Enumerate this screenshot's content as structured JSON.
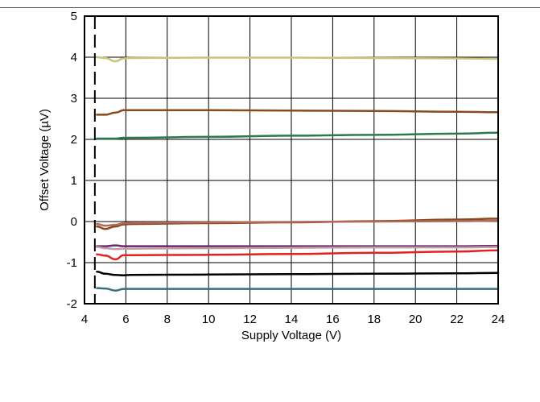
{
  "chart_data": {
    "type": "line",
    "title": "",
    "xlabel": "Supply Voltage (V)",
    "ylabel": "Offset Voltage (µV)",
    "xlim": [
      4,
      24
    ],
    "ylim": [
      -2,
      5
    ],
    "xticks": [
      4,
      6,
      8,
      10,
      12,
      14,
      16,
      18,
      20,
      22,
      24
    ],
    "yticks": [
      -2,
      -1,
      0,
      1,
      2,
      3,
      4,
      5
    ],
    "grid": true,
    "legend": "none",
    "dashed_marker_x": 4.5,
    "series": [
      {
        "color": "#c8c47a",
        "x": [
          4.6,
          5.0,
          5.5,
          5.9,
          6.2,
          10,
          14,
          18,
          22,
          24
        ],
        "y": [
          4.0,
          3.98,
          3.9,
          3.97,
          3.98,
          3.99,
          3.99,
          3.98,
          3.97,
          3.96
        ]
      },
      {
        "color": "#8b4a1c",
        "x": [
          4.6,
          5.0,
          5.5,
          5.9,
          6.2,
          10,
          14,
          18,
          22,
          24
        ],
        "y": [
          2.6,
          2.6,
          2.65,
          2.71,
          2.71,
          2.71,
          2.7,
          2.69,
          2.67,
          2.66
        ]
      },
      {
        "color": "#2a7a4e",
        "x": [
          4.6,
          5.0,
          5.5,
          5.9,
          6.2,
          10,
          14,
          18,
          22,
          24
        ],
        "y": [
          2.02,
          2.02,
          2.02,
          2.04,
          2.04,
          2.06,
          2.09,
          2.11,
          2.14,
          2.16
        ]
      },
      {
        "color": "#8b4a1c",
        "x": [
          4.6,
          5.0,
          5.5,
          5.9,
          6.2,
          10,
          14,
          18,
          22,
          24
        ],
        "y": [
          -0.12,
          -0.18,
          -0.12,
          -0.07,
          -0.06,
          -0.04,
          -0.02,
          0.01,
          0.05,
          0.07
        ]
      },
      {
        "color": "#b06a5a",
        "x": [
          4.6,
          5.0,
          5.5,
          5.9,
          6.2,
          10,
          14,
          18,
          22,
          24
        ],
        "y": [
          -0.06,
          -0.1,
          -0.08,
          -0.04,
          -0.03,
          -0.02,
          -0.01,
          0.0,
          0.01,
          0.02
        ]
      },
      {
        "color": "#6a2a6a",
        "x": [
          4.6,
          5.0,
          5.5,
          5.9,
          6.2,
          10,
          14,
          18,
          22,
          24
        ],
        "y": [
          -0.6,
          -0.6,
          -0.58,
          -0.6,
          -0.6,
          -0.6,
          -0.6,
          -0.6,
          -0.6,
          -0.59
        ]
      },
      {
        "color": "#c0a0a8",
        "x": [
          4.6,
          5.0,
          5.5,
          5.9,
          6.2,
          10,
          14,
          18,
          22,
          24
        ],
        "y": [
          -0.62,
          -0.65,
          -0.67,
          -0.66,
          -0.66,
          -0.65,
          -0.64,
          -0.63,
          -0.63,
          -0.62
        ]
      },
      {
        "color": "#e52020",
        "x": [
          4.6,
          5.0,
          5.5,
          5.9,
          6.2,
          10,
          14,
          18,
          22,
          24
        ],
        "y": [
          -0.8,
          -0.83,
          -0.92,
          -0.82,
          -0.82,
          -0.81,
          -0.79,
          -0.76,
          -0.73,
          -0.7
        ]
      },
      {
        "color": "#000000",
        "x": [
          4.6,
          5.0,
          5.5,
          5.9,
          6.2,
          10,
          14,
          18,
          22,
          24
        ],
        "y": [
          -1.22,
          -1.27,
          -1.3,
          -1.31,
          -1.3,
          -1.29,
          -1.28,
          -1.27,
          -1.26,
          -1.25
        ]
      },
      {
        "color": "#3a6e7e",
        "x": [
          4.6,
          5.0,
          5.5,
          5.9,
          6.2,
          10,
          14,
          18,
          22,
          24
        ],
        "y": [
          -1.62,
          -1.63,
          -1.68,
          -1.64,
          -1.64,
          -1.64,
          -1.64,
          -1.64,
          -1.64,
          -1.64
        ]
      }
    ]
  }
}
